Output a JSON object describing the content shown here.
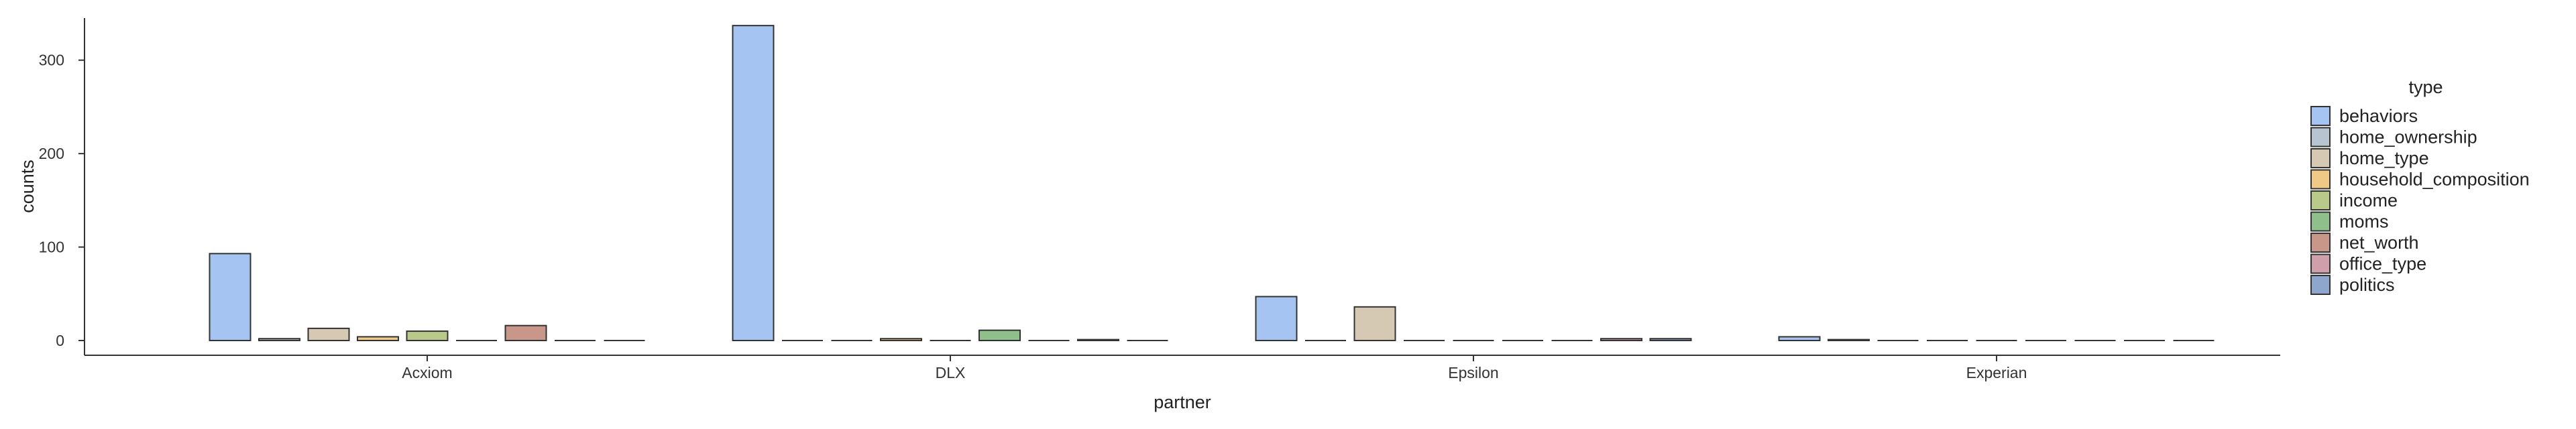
{
  "chart_data": {
    "type": "bar",
    "xlabel": "partner",
    "ylabel": "counts",
    "ylim": [
      0,
      345
    ],
    "yticks": [
      0,
      100,
      200,
      300
    ],
    "grid": false,
    "legend_title": "type",
    "legend_position": "right",
    "categories": [
      "Acxiom",
      "DLX",
      "Epsilon",
      "Experian"
    ],
    "series": [
      {
        "name": "behaviors",
        "color": "#a6c4f2",
        "values": [
          93,
          337,
          47,
          4
        ]
      },
      {
        "name": "home_ownership",
        "color": "#b8c4d0",
        "values": [
          2,
          0,
          0,
          1
        ]
      },
      {
        "name": "home_type",
        "color": "#d5c9b3",
        "values": [
          13,
          0,
          36,
          0
        ]
      },
      {
        "name": "household_composition",
        "color": "#f0c987",
        "values": [
          4,
          2,
          0,
          0
        ]
      },
      {
        "name": "income",
        "color": "#b9c98a",
        "values": [
          10,
          0,
          0,
          0
        ]
      },
      {
        "name": "moms",
        "color": "#8fbf8a",
        "values": [
          0,
          11,
          0,
          0
        ]
      },
      {
        "name": "net_worth",
        "color": "#c9968a",
        "values": [
          16,
          0,
          0,
          0
        ]
      },
      {
        "name": "office_type",
        "color": "#cf9fac",
        "values": [
          0,
          1,
          2,
          0
        ]
      },
      {
        "name": "politics",
        "color": "#8fa6cc",
        "values": [
          0,
          0,
          2,
          0
        ]
      }
    ]
  }
}
